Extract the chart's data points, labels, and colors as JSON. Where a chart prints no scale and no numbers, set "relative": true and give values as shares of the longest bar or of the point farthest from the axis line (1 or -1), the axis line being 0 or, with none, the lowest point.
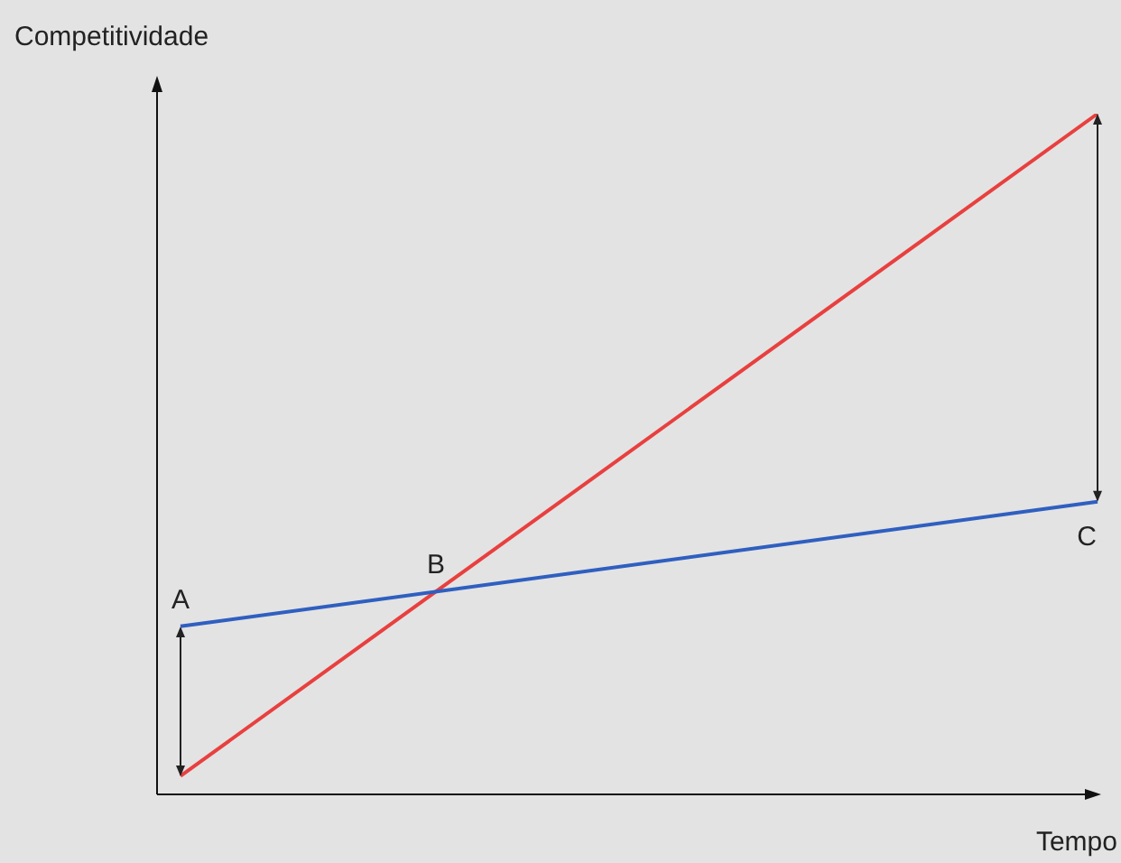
{
  "chart_data": {
    "type": "line",
    "xlabel": "Tempo",
    "ylabel": "Competitividade",
    "relative": true,
    "categories": [
      null,
      null
    ],
    "series": [
      {
        "color": "#2f5fc0",
        "values": [
          0.247,
          0.43
        ]
      },
      {
        "color": "#e8403f",
        "values": [
          0.027,
          1
        ]
      }
    ],
    "annotations": [
      "A",
      "B",
      "C"
    ],
    "legend": false,
    "marker": "none",
    "line_style": "solid",
    "tick_labels": false
  }
}
